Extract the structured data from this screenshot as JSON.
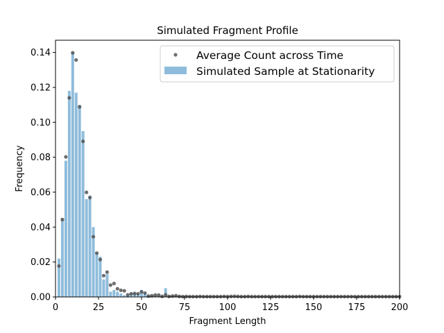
{
  "chart_data": {
    "type": "bar",
    "title": "Simulated Fragment Profile",
    "xlabel": "Fragment Length",
    "ylabel": "Frequency",
    "xlim": [
      0,
      200
    ],
    "ylim": [
      0,
      0.147
    ],
    "xticks": [
      0,
      25,
      50,
      75,
      100,
      125,
      150,
      175,
      200
    ],
    "xtick_labels": [
      "0",
      "25",
      "50",
      "75",
      "100",
      "125",
      "150",
      "175",
      "200"
    ],
    "yticks": [
      0,
      0.02,
      0.04,
      0.06,
      0.08,
      0.1,
      0.12,
      0.14
    ],
    "ytick_labels": [
      "0.00",
      "0.02",
      "0.04",
      "0.06",
      "0.08",
      "0.10",
      "0.12",
      "0.14"
    ],
    "grid": false,
    "legend_position": "top-right",
    "colors": {
      "bar": "#8fbcdb",
      "point": "#555555"
    },
    "series": [
      {
        "name": "Simulated Sample at Stationarity",
        "kind": "bar",
        "x": [
          2,
          4,
          6,
          8,
          10,
          12,
          14,
          16,
          18,
          20,
          22,
          24,
          26,
          28,
          30,
          32,
          34,
          36,
          38,
          40,
          42,
          44,
          46,
          48,
          50,
          52,
          54,
          56,
          58,
          60,
          62,
          64,
          66,
          68,
          70,
          72
        ],
        "values": [
          0.022,
          0.045,
          0.078,
          0.118,
          0.14,
          0.117,
          0.11,
          0.095,
          0.056,
          0.058,
          0.04,
          0.025,
          0.023,
          0.01,
          0.013,
          0.003,
          0.004,
          0.003,
          0.002,
          0.001,
          0.001,
          0.002,
          0.003,
          0.002,
          0.004,
          0.002,
          0.001,
          0.001,
          0.001,
          0.001,
          0.001,
          0.005,
          0.001,
          0.001,
          0.001,
          0.001
        ]
      },
      {
        "name": "Average Count across Time",
        "kind": "scatter",
        "x": [
          2,
          4,
          6,
          8,
          10,
          12,
          14,
          16,
          18,
          20,
          22,
          24,
          26,
          28,
          30,
          32,
          34,
          36,
          38,
          40,
          42,
          44,
          46,
          48,
          50,
          52,
          54,
          56,
          58,
          60,
          62,
          64,
          66,
          68,
          70,
          72,
          74,
          76,
          78,
          80,
          82,
          84,
          86,
          88,
          90,
          92,
          94,
          96,
          98,
          100,
          102,
          104,
          106,
          108,
          110,
          112,
          114,
          116,
          118,
          120,
          122,
          124,
          126,
          128,
          130,
          132,
          134,
          136,
          138,
          140,
          142,
          144,
          146,
          148,
          150,
          152,
          154,
          156,
          158,
          160,
          162,
          164,
          166,
          168,
          170,
          172,
          174,
          176,
          178,
          180,
          182,
          184,
          186,
          188,
          190,
          192,
          194,
          196,
          198,
          200
        ],
        "values": [
          0.0177,
          0.0443,
          0.0802,
          0.114,
          0.1398,
          0.1357,
          0.1088,
          0.0891,
          0.0599,
          0.0569,
          0.0345,
          0.0251,
          0.0214,
          0.0122,
          0.0142,
          0.0068,
          0.0077,
          0.0047,
          0.0038,
          0.0035,
          0.0012,
          0.0018,
          0.0018,
          0.0018,
          0.0029,
          0.0022,
          0.0005,
          0.0007,
          0.0011,
          0.0011,
          0.0003,
          0.0012,
          0.0003,
          0.0005,
          0.0007,
          0.0003,
          0.0002,
          0.0003,
          0.0002,
          0.0002,
          0.0002,
          0.0003,
          0.0002,
          0.0002,
          0.0002,
          0.0002,
          0.0002,
          0.0002,
          0.0003,
          0.0002,
          0.0003,
          0.0004,
          0.0003,
          0.0002,
          0.0002,
          0.0003,
          0.0002,
          0.0002,
          0.0002,
          0.0002,
          0.0002,
          0.0002,
          0.0002,
          0.0002,
          0.0002,
          0.0002,
          0.0002,
          0.0002,
          0.0002,
          0.0002,
          0.0003,
          0.0002,
          0.0002,
          0.0002,
          0.0002,
          0.0002,
          0.0002,
          0.0002,
          0.0002,
          0.0002,
          0.0002,
          0.0002,
          0.0002,
          0.0002,
          0.0002,
          0.0002,
          0.0002,
          0.0002,
          0.0002,
          0.0002,
          0.0002,
          0.0002,
          0.0002,
          0.0002,
          0.0002,
          0.0002,
          0.0002,
          0.0002,
          0.0002,
          0.0002
        ]
      }
    ]
  }
}
